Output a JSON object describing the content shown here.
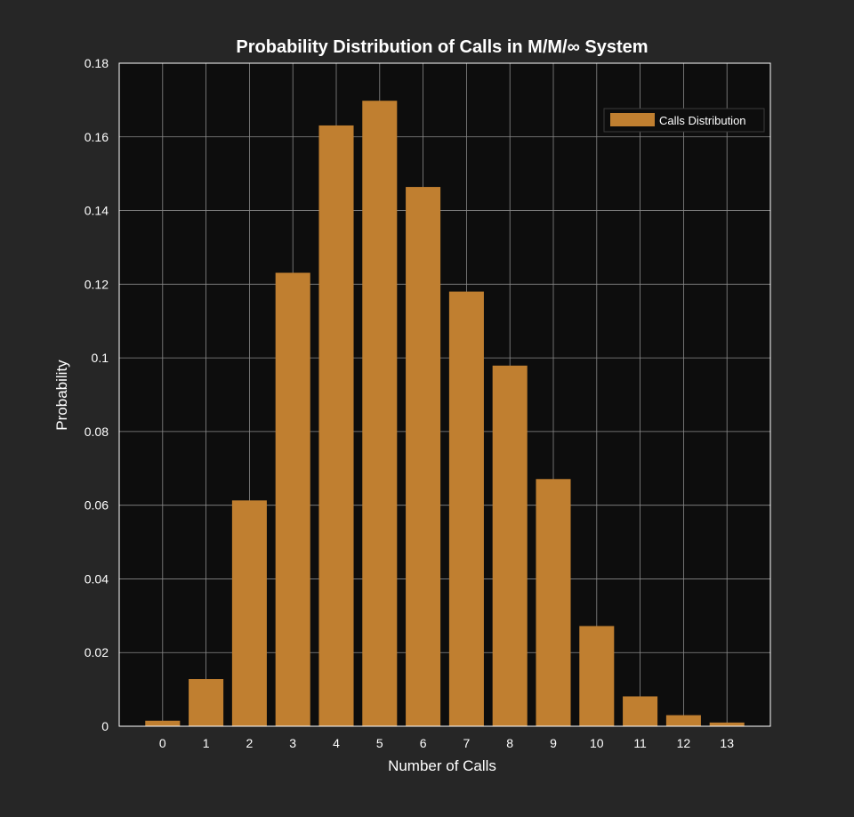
{
  "chart_data": {
    "type": "bar",
    "title": "Probability Distribution of Calls in M/M/∞ System",
    "xlabel": "Number of Calls",
    "ylabel": "Probability",
    "categories": [
      "0",
      "1",
      "2",
      "3",
      "4",
      "5",
      "6",
      "7",
      "8",
      "9",
      "10",
      "11",
      "12",
      "13"
    ],
    "series": [
      {
        "name": "Calls Distribution",
        "values": [
          0.0015,
          0.0128,
          0.0613,
          0.1231,
          0.1631,
          0.1698,
          0.1464,
          0.118,
          0.0979,
          0.0671,
          0.0272,
          0.0081,
          0.003,
          0.001
        ]
      }
    ],
    "x_range": [
      -1,
      14
    ],
    "ylim": [
      0,
      0.18
    ],
    "yticks": [
      "0",
      "0.02",
      "0.04",
      "0.06",
      "0.08",
      "0.1",
      "0.12",
      "0.14",
      "0.16",
      "0.18"
    ],
    "grid": true,
    "legend_position": "top-right",
    "colors": {
      "figure_background": "#262626",
      "axes_background": "#0d0d0d",
      "bar_fill": "#c07f30",
      "grid": "#8a8a8a",
      "axes_border": "#ffffff",
      "text": "#ffffff"
    }
  }
}
